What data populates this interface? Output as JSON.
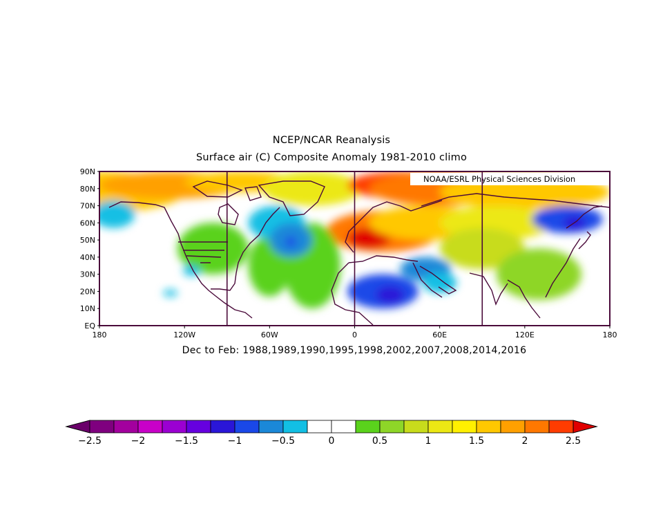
{
  "title": "NCEP/NCAR Reanalysis",
  "subtitle": "Surface air (C) Composite Anomaly 1981-2010 climo",
  "credit": "NOAA/ESRL Physical Sciences Division",
  "caption": "Dec to Feb: 1988,1989,1990,1995,1998,2002,2007,2008,2014,2016",
  "map": {
    "lon_range": [
      -180,
      180
    ],
    "lat_range": [
      0,
      90
    ],
    "lat_labels": [
      "EQ",
      "10N",
      "20N",
      "30N",
      "40N",
      "50N",
      "60N",
      "70N",
      "80N",
      "90N"
    ],
    "lon_labels": [
      "180",
      "120W",
      "60W",
      "0",
      "60E",
      "120E",
      "180"
    ],
    "meridian_lines": [
      -90,
      0,
      90
    ]
  },
  "colorbar": {
    "labels": [
      "-2.5",
      "-2",
      "-1.5",
      "-1",
      "-0.5",
      "0",
      "0.5",
      "1",
      "1.5",
      "2",
      "2.5"
    ],
    "colors": [
      "#7f007f",
      "#a3009e",
      "#c800c8",
      "#9b00d2",
      "#6600e0",
      "#2a16d8",
      "#1a48e8",
      "#1b88d8",
      "#12bfe4",
      "#ffffff",
      "#ffffff",
      "#5ad21c",
      "#8ed628",
      "#c8dc1c",
      "#ece814",
      "#fff000",
      "#ffc800",
      "#ffa000",
      "#ff7800",
      "#ff3c00"
    ],
    "under_color": "#6a006a",
    "over_color": "#e00000"
  },
  "anomalies": [
    {
      "lon": -180,
      "lat": 78,
      "rx": 60,
      "ry": 12,
      "color": "#ffc800"
    },
    {
      "lon": -130,
      "lat": 82,
      "rx": 50,
      "ry": 8,
      "color": "#ffa000"
    },
    {
      "lon": -80,
      "lat": 84,
      "rx": 40,
      "ry": 6,
      "color": "#ffc800"
    },
    {
      "lon": -30,
      "lat": 80,
      "rx": 35,
      "ry": 10,
      "color": "#ece814"
    },
    {
      "lon": 35,
      "lat": 82,
      "rx": 40,
      "ry": 8,
      "color": "#ff3c00"
    },
    {
      "lon": 60,
      "lat": 80,
      "rx": 50,
      "ry": 10,
      "color": "#ff7800"
    },
    {
      "lon": 120,
      "lat": 78,
      "rx": 60,
      "ry": 10,
      "color": "#ffc800"
    },
    {
      "lon": 20,
      "lat": 55,
      "rx": 40,
      "ry": 12,
      "color": "#ff7800"
    },
    {
      "lon": 10,
      "lat": 51,
      "rx": 15,
      "ry": 6,
      "color": "#e00000"
    },
    {
      "lon": 50,
      "lat": 60,
      "rx": 40,
      "ry": 10,
      "color": "#ffc800"
    },
    {
      "lon": 100,
      "lat": 60,
      "rx": 40,
      "ry": 10,
      "color": "#ece814"
    },
    {
      "lon": 90,
      "lat": 45,
      "rx": 30,
      "ry": 12,
      "color": "#c8dc1c"
    },
    {
      "lon": 130,
      "lat": 30,
      "rx": 30,
      "ry": 15,
      "color": "#8ed628"
    },
    {
      "lon": -60,
      "lat": 35,
      "rx": 15,
      "ry": 18,
      "color": "#5ad21c"
    },
    {
      "lon": -30,
      "lat": 35,
      "rx": 20,
      "ry": 25,
      "color": "#5ad21c"
    },
    {
      "lon": -100,
      "lat": 45,
      "rx": 25,
      "ry": 15,
      "color": "#5ad21c"
    },
    {
      "lon": -170,
      "lat": 65,
      "rx": 15,
      "ry": 8,
      "color": "#12bfe4"
    },
    {
      "lon": 150,
      "lat": 62,
      "rx": 25,
      "ry": 8,
      "color": "#1a48e8"
    },
    {
      "lon": 155,
      "lat": 60,
      "rx": 8,
      "ry": 4,
      "color": "#2a16d8"
    },
    {
      "lon": -55,
      "lat": 60,
      "rx": 20,
      "ry": 10,
      "color": "#12bfe4"
    },
    {
      "lon": -45,
      "lat": 50,
      "rx": 15,
      "ry": 10,
      "color": "#1b88d8"
    },
    {
      "lon": -45,
      "lat": 49,
      "rx": 4,
      "ry": 3,
      "color": "#1a48e8"
    },
    {
      "lon": 20,
      "lat": 20,
      "rx": 25,
      "ry": 10,
      "color": "#1a48e8"
    },
    {
      "lon": 25,
      "lat": 18,
      "rx": 10,
      "ry": 5,
      "color": "#2a16d8"
    },
    {
      "lon": 50,
      "lat": 33,
      "rx": 18,
      "ry": 7,
      "color": "#1b88d8"
    },
    {
      "lon": 60,
      "lat": 25,
      "rx": 12,
      "ry": 6,
      "color": "#12bfe4"
    },
    {
      "lon": -130,
      "lat": 19,
      "rx": 5,
      "ry": 2,
      "color": "#12bfe4"
    },
    {
      "lon": -115,
      "lat": 32,
      "rx": 6,
      "ry": 3,
      "color": "#12bfe4"
    }
  ]
}
